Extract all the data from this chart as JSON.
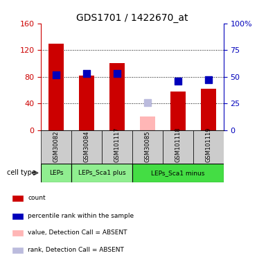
{
  "title": "GDS1701 / 1422670_at",
  "samples": [
    "GSM30082",
    "GSM30084",
    "GSM101117",
    "GSM30085",
    "GSM101118",
    "GSM101119"
  ],
  "red_values": [
    130,
    82,
    100,
    null,
    58,
    62
  ],
  "pink_values": [
    null,
    null,
    null,
    20,
    null,
    null
  ],
  "blue_pct": [
    52,
    53,
    53,
    null,
    46,
    47
  ],
  "lb_pct": [
    null,
    null,
    null,
    26,
    null,
    null
  ],
  "absent": [
    false,
    false,
    false,
    true,
    false,
    false
  ],
  "ylim_left": [
    0,
    160
  ],
  "ylim_right": [
    0,
    100
  ],
  "yticks_left": [
    0,
    40,
    80,
    120,
    160
  ],
  "yticks_right": [
    0,
    25,
    50,
    75,
    100
  ],
  "ytick_labels_left": [
    "0",
    "40",
    "80",
    "120",
    "160"
  ],
  "ytick_labels_right": [
    "0",
    "25",
    "50",
    "75",
    "100%"
  ],
  "cell_types": [
    {
      "label": "LEPs",
      "start": 0,
      "end": 1,
      "color": "#90EE90"
    },
    {
      "label": "LEPs_Sca1 plus",
      "start": 1,
      "end": 3,
      "color": "#90EE90"
    },
    {
      "label": "LEPs_Sca1 minus",
      "start": 3,
      "end": 6,
      "color": "#44DD44"
    }
  ],
  "cell_type_label": "cell type",
  "legend_items": [
    {
      "color": "#CC0000",
      "label": "count"
    },
    {
      "color": "#0000BB",
      "label": "percentile rank within the sample"
    },
    {
      "color": "#FFB6B6",
      "label": "value, Detection Call = ABSENT"
    },
    {
      "color": "#BBBBDD",
      "label": "rank, Detection Call = ABSENT"
    }
  ],
  "bar_color_normal": "#CC0000",
  "bar_color_absent": "#FFB6B6",
  "dot_color_normal": "#0000BB",
  "dot_color_absent": "#BBBBDD",
  "bg_color": "#FFFFFF",
  "axis_color_left": "#CC0000",
  "axis_color_right": "#0000BB",
  "bar_width": 0.5,
  "dot_size": 55
}
